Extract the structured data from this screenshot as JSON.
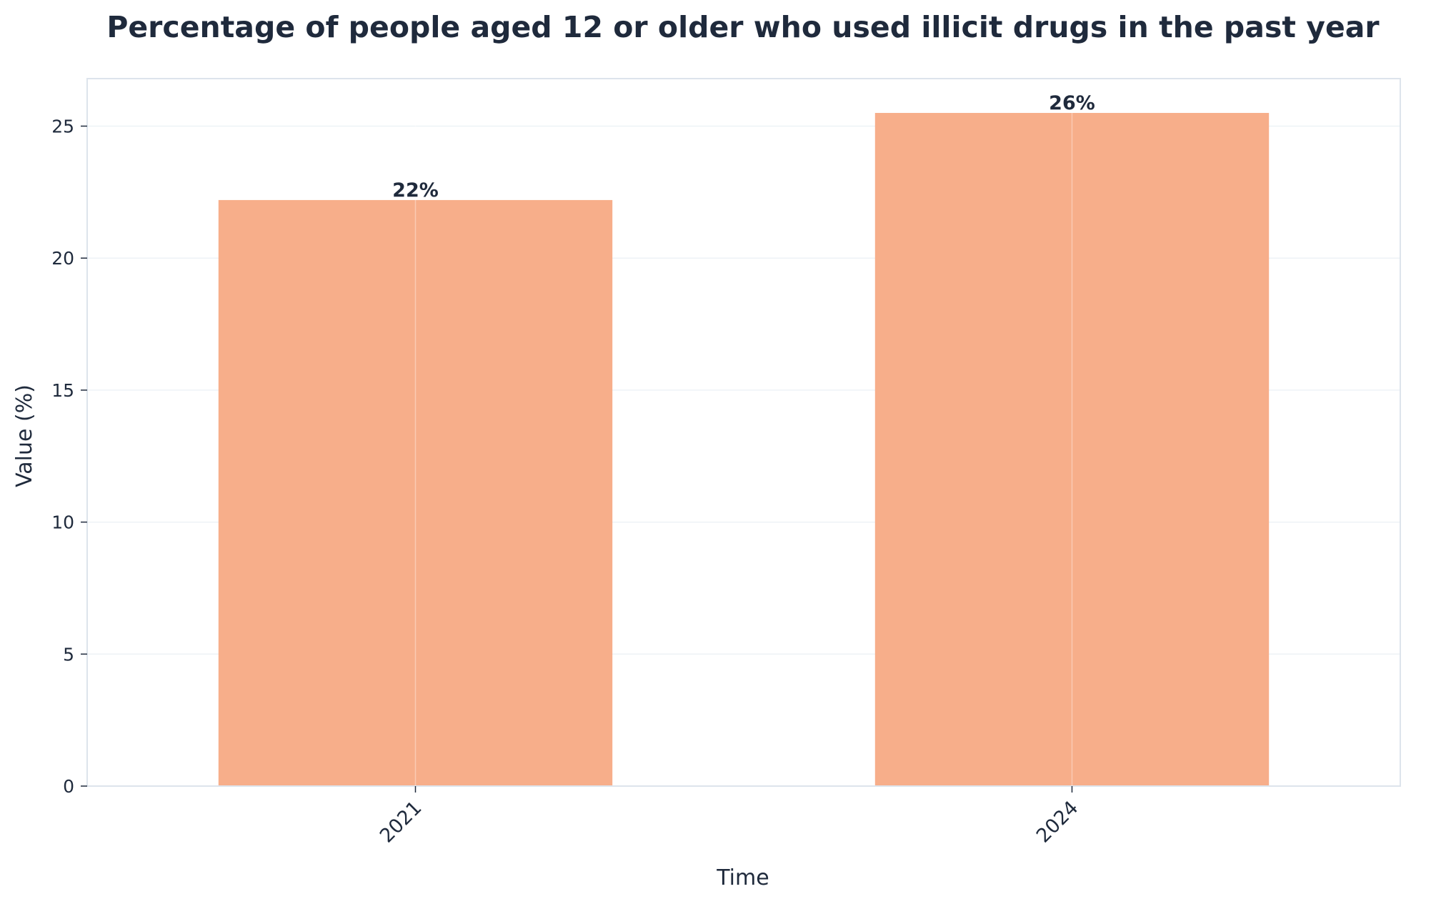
{
  "chart_data": {
    "type": "bar",
    "title": "Percentage of people aged 12 or older who used illicit drugs in the past year",
    "xlabel": "Time",
    "ylabel": "Value (%)",
    "categories": [
      "2021",
      "2024"
    ],
    "values": [
      22.2,
      25.5
    ],
    "data_labels": [
      "22%",
      "26%"
    ],
    "ylim": [
      0,
      26.8
    ],
    "yticks": [
      0,
      5,
      10,
      15,
      20,
      25
    ],
    "grid": true,
    "bar_color": "#f7ae8a",
    "text_color": "#1f2a3c",
    "frame_color": "#dde4ec"
  }
}
